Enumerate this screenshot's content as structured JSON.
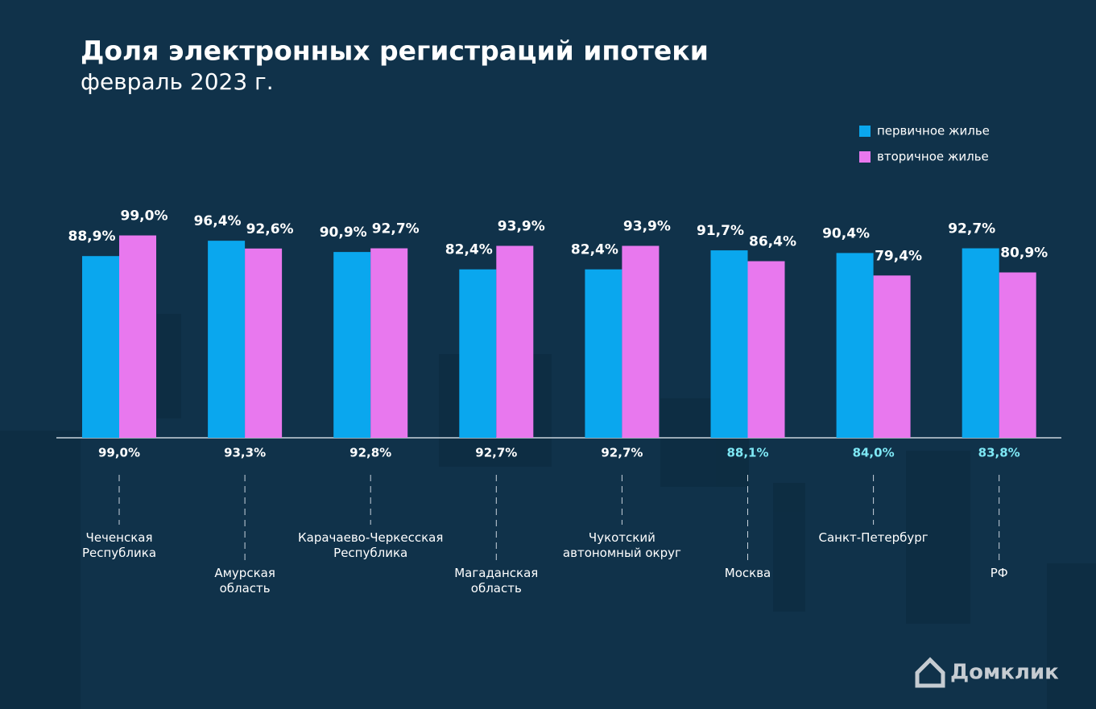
{
  "chart_data": {
    "type": "bar",
    "title": "Доля электронных регистраций ипотеки",
    "subtitle": "февраль 2023 г.",
    "categories": [
      "Чеченская\nРеспублика",
      "Амурская\nобласть",
      "Карачаево-Черкесская\nРеспублика",
      "Магаданская\nобласть",
      "Чукотский\nавтономный округ",
      "Москва",
      "Санкт-Петербург",
      "РФ"
    ],
    "series": [
      {
        "name": "первичное жилье",
        "color": "#0aa7ee",
        "values": [
          88.9,
          96.4,
          90.9,
          82.4,
          82.4,
          91.7,
          90.4,
          92.7
        ],
        "value_labels": [
          "88,9%",
          "96,4%",
          "90,9%",
          "82,4%",
          "82,4%",
          "91,7%",
          "90,4%",
          "92,7%"
        ]
      },
      {
        "name": "вторичное жилье",
        "color": "#e878ee",
        "values": [
          99.0,
          92.6,
          92.7,
          93.9,
          93.9,
          86.4,
          79.4,
          80.9
        ],
        "value_labels": [
          "99,0%",
          "92,6%",
          "92,7%",
          "93,9%",
          "93,9%",
          "86,4%",
          "79,4%",
          "80,9%"
        ]
      }
    ],
    "totals": {
      "values": [
        99.0,
        93.3,
        92.8,
        92.7,
        92.7,
        88.1,
        84.0,
        83.8
      ],
      "value_labels": [
        "99,0%",
        "93,3%",
        "92,8%",
        "92,7%",
        "92,7%",
        "88,1%",
        "84,0%",
        "83,8%"
      ],
      "colors": [
        "#ffffff",
        "#ffffff",
        "#ffffff",
        "#ffffff",
        "#ffffff",
        "#7ee8f5",
        "#7ee8f5",
        "#7ee8f5"
      ]
    },
    "ylim": [
      0,
      100
    ],
    "brand": "Домклик"
  }
}
